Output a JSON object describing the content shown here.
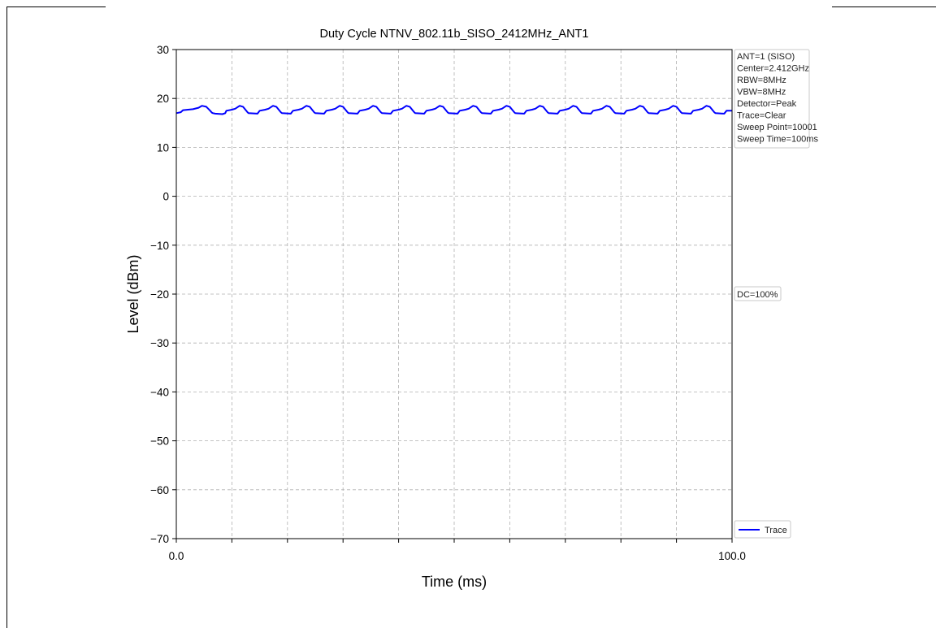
{
  "chart_data": {
    "type": "line",
    "title": "Duty Cycle NTNV_802.11b_SISO_2412MHz_ANT1",
    "xlabel": "Time (ms)",
    "ylabel": "Level (dBm)",
    "xlim": [
      0,
      100
    ],
    "ylim": [
      -70,
      30
    ],
    "x_tick_labels": [
      "0.0",
      "100.0"
    ],
    "y_ticks": [
      30,
      20,
      10,
      0,
      -10,
      -20,
      -30,
      -40,
      -50,
      -60,
      -70
    ],
    "y_tick_labels": [
      "30",
      "20",
      "10",
      "0",
      "−10",
      "−20",
      "−30",
      "−40",
      "−50",
      "−60",
      "−70"
    ],
    "grid": true,
    "legend_placement": "bottom-right",
    "series": [
      {
        "name": "Trace",
        "color": "#0000ff",
        "x": [
          0.0,
          0.8,
          1.2,
          3.0,
          4.0,
          4.6,
          5.4,
          6.0,
          6.4,
          6.6,
          7.0,
          8.3,
          8.8,
          9.0,
          10.0,
          10.6,
          11.4,
          12.0,
          12.8,
          13.0,
          14.6,
          15.0,
          16.0,
          16.6,
          17.4,
          18.0,
          18.8,
          19.0,
          20.6,
          21.0,
          22.0,
          22.6,
          23.4,
          24.0,
          24.8,
          25.0,
          26.6,
          27.0,
          28.0,
          28.6,
          29.4,
          30.0,
          30.8,
          31.0,
          32.6,
          33.0,
          34.0,
          34.6,
          35.4,
          36.0,
          36.8,
          37.0,
          38.6,
          39.0,
          40.0,
          40.6,
          41.4,
          42.0,
          42.8,
          43.0,
          44.6,
          45.0,
          46.0,
          46.6,
          47.4,
          48.0,
          48.8,
          49.0,
          50.6,
          51.0,
          52.0,
          52.6,
          53.4,
          54.0,
          54.8,
          55.0,
          56.6,
          57.0,
          58.0,
          58.6,
          59.4,
          60.0,
          60.8,
          61.0,
          62.6,
          63.0,
          64.0,
          64.6,
          65.4,
          66.0,
          66.8,
          67.0,
          68.6,
          69.0,
          70.0,
          70.6,
          71.4,
          72.0,
          72.8,
          73.0,
          74.6,
          75.0,
          76.0,
          76.6,
          77.4,
          78.0,
          78.8,
          79.0,
          80.6,
          81.0,
          82.0,
          82.6,
          83.4,
          84.0,
          84.8,
          85.0,
          86.6,
          87.0,
          88.0,
          88.6,
          89.4,
          90.0,
          90.8,
          91.0,
          92.6,
          93.0,
          94.0,
          94.6,
          95.4,
          96.0,
          96.8,
          97.0,
          98.6,
          99.0,
          100.0
        ],
        "y": [
          17.0,
          17.2,
          17.6,
          17.8,
          18.1,
          18.5,
          18.3,
          17.6,
          17.1,
          17.0,
          16.9,
          16.8,
          17.0,
          17.5,
          17.7,
          17.9,
          18.5,
          18.3,
          17.2,
          17.0,
          16.9,
          17.5,
          17.7,
          17.9,
          18.5,
          18.3,
          17.2,
          17.0,
          16.9,
          17.5,
          17.7,
          17.9,
          18.5,
          18.3,
          17.2,
          17.0,
          16.9,
          17.5,
          17.7,
          17.9,
          18.5,
          18.3,
          17.2,
          17.0,
          16.9,
          17.5,
          17.7,
          17.9,
          18.5,
          18.3,
          17.2,
          17.0,
          16.9,
          17.5,
          17.7,
          17.9,
          18.5,
          18.3,
          17.2,
          17.0,
          16.9,
          17.5,
          17.7,
          17.9,
          18.5,
          18.3,
          17.2,
          17.0,
          16.9,
          17.5,
          17.7,
          17.9,
          18.5,
          18.3,
          17.2,
          17.0,
          16.9,
          17.5,
          17.7,
          17.9,
          18.5,
          18.3,
          17.2,
          17.0,
          16.9,
          17.5,
          17.7,
          17.9,
          18.5,
          18.3,
          17.2,
          17.0,
          16.9,
          17.5,
          17.7,
          17.9,
          18.5,
          18.3,
          17.2,
          17.0,
          16.9,
          17.5,
          17.7,
          17.9,
          18.5,
          18.3,
          17.2,
          17.0,
          16.9,
          17.5,
          17.7,
          17.9,
          18.5,
          18.3,
          17.2,
          17.0,
          16.9,
          17.5,
          17.7,
          17.9,
          18.5,
          18.3,
          17.2,
          17.0,
          16.9,
          17.5,
          17.7,
          17.9,
          18.5,
          18.3,
          17.2,
          17.0,
          16.9,
          17.5,
          17.5
        ]
      }
    ],
    "info_box": [
      "ANT=1 (SISO)",
      "Center=2.412GHz",
      "RBW=8MHz",
      "VBW=8MHz",
      "Detector=Peak",
      "Trace=Clear",
      "Sweep Point=10001",
      "Sweep Time=100ms"
    ],
    "dc_label": "DC=100%",
    "legend": {
      "label": "Trace",
      "color": "#0000ff"
    }
  }
}
